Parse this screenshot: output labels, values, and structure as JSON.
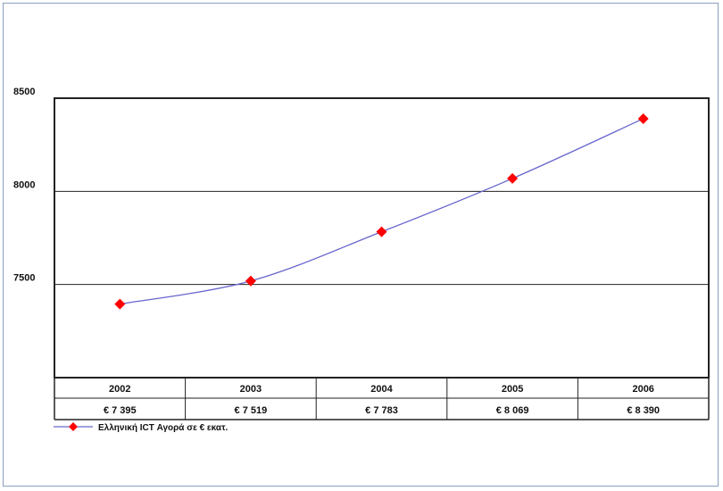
{
  "chart_data": {
    "type": "line",
    "categories": [
      "2002",
      "2003",
      "2004",
      "2005",
      "2006"
    ],
    "series": [
      {
        "name": "Ελληνική ICT Αγορά σε € εκατ.",
        "values": [
          7395,
          7519,
          7783,
          8069,
          8390
        ],
        "value_labels": [
          "€ 7 395",
          "€ 7 519",
          "€ 7 783",
          "€ 8 069",
          "€ 8 390"
        ],
        "color": "#6666cc",
        "marker_color": "#ff0000"
      }
    ],
    "ylim": [
      7000,
      8500
    ],
    "yticks": [
      "8500",
      "8000",
      "7500"
    ],
    "ytick_values": [
      8500,
      8000,
      7500
    ],
    "grid": true,
    "legend_position": "bottom-left",
    "data_table": true
  }
}
